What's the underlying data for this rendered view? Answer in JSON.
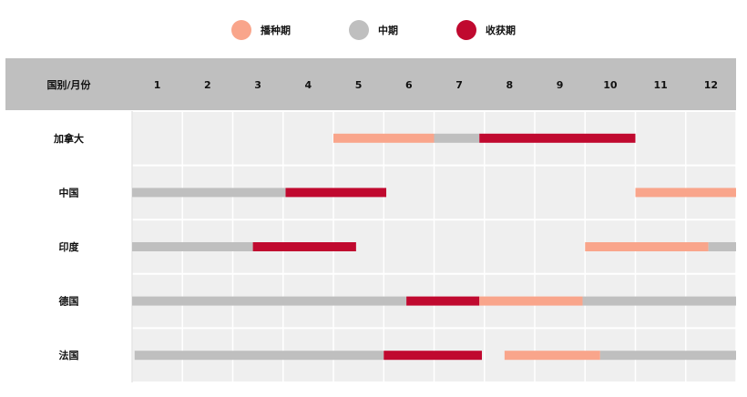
{
  "chart_data": {
    "type": "gantt",
    "legend": [
      {
        "name": "播种期",
        "color": "#F9A58B"
      },
      {
        "name": "中期",
        "color": "#BFBFBF"
      },
      {
        "name": "收获期",
        "color": "#C0092F"
      }
    ],
    "header": {
      "row_label": "国别/月份",
      "months": [
        "1",
        "2",
        "3",
        "4",
        "5",
        "6",
        "7",
        "8",
        "9",
        "10",
        "11",
        "12"
      ]
    },
    "rows": [
      {
        "country": "加拿大",
        "segments": [
          {
            "phase": "播种期",
            "start": 5.0,
            "end": 7.0
          },
          {
            "phase": "中期",
            "start": 7.0,
            "end": 7.9
          },
          {
            "phase": "收获期",
            "start": 7.9,
            "end": 11.0
          }
        ]
      },
      {
        "country": "中国",
        "segments": [
          {
            "phase": "中期",
            "start": 1.0,
            "end": 4.05
          },
          {
            "phase": "收获期",
            "start": 4.05,
            "end": 6.05
          },
          {
            "phase": "播种期",
            "start": 11.0,
            "end": 13.0
          }
        ]
      },
      {
        "country": "印度",
        "segments": [
          {
            "phase": "中期",
            "start": 1.0,
            "end": 3.4
          },
          {
            "phase": "收获期",
            "start": 3.4,
            "end": 5.45
          },
          {
            "phase": "播种期",
            "start": 10.0,
            "end": 12.45
          },
          {
            "phase": "中期",
            "start": 12.45,
            "end": 13.0
          }
        ]
      },
      {
        "country": "德国",
        "segments": [
          {
            "phase": "中期",
            "start": 1.0,
            "end": 6.45
          },
          {
            "phase": "收获期",
            "start": 6.45,
            "end": 7.9
          },
          {
            "phase": "播种期",
            "start": 7.9,
            "end": 9.95
          },
          {
            "phase": "中期",
            "start": 9.95,
            "end": 13.0
          }
        ]
      },
      {
        "country": "法国",
        "segments": [
          {
            "phase": "中期",
            "start": 1.05,
            "end": 6.0
          },
          {
            "phase": "收获期",
            "start": 6.0,
            "end": 7.95
          },
          {
            "phase": "播种期",
            "start": 8.4,
            "end": 10.3
          },
          {
            "phase": "中期",
            "start": 10.3,
            "end": 13.0
          }
        ]
      }
    ]
  }
}
